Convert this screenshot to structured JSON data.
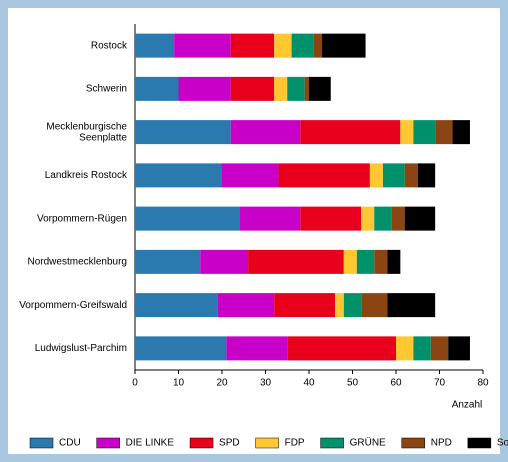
{
  "chart_data": {
    "type": "stacked-barh",
    "categories": [
      "Rostock",
      "Schwerin",
      "Mecklenburgische Seenplatte",
      "Landkreis Rostock",
      "Vorpommern-Rügen",
      "Nordwestmecklenburg",
      "Vorpommern-Greifswald",
      "Ludwigslust-Parchim"
    ],
    "series": [
      {
        "name": "CDU",
        "color": "#2a7ab0",
        "values": [
          9,
          10,
          22,
          20,
          24,
          15,
          19,
          21
        ]
      },
      {
        "name": "DIE LINKE",
        "color": "#c800c8",
        "values": [
          13,
          12,
          16,
          13,
          14,
          11,
          13,
          14
        ]
      },
      {
        "name": "SPD",
        "color": "#e8001c",
        "values": [
          10,
          10,
          23,
          21,
          14,
          22,
          14,
          25
        ]
      },
      {
        "name": "FDP",
        "color": "#ffc832",
        "values": [
          4,
          3,
          3,
          3,
          3,
          3,
          2,
          4
        ]
      },
      {
        "name": "GRÜNE",
        "color": "#00916b",
        "values": [
          5,
          4,
          5,
          5,
          4,
          4,
          4,
          4
        ]
      },
      {
        "name": "NPD",
        "color": "#8b4513",
        "values": [
          2,
          1,
          4,
          3,
          3,
          3,
          6,
          4
        ]
      },
      {
        "name": "Sonstige",
        "color": "#000000",
        "values": [
          10,
          5,
          4,
          4,
          7,
          3,
          11,
          5
        ]
      }
    ],
    "x_label": "Anzahl",
    "xlim": [
      0,
      80
    ],
    "xticks": [
      0,
      10,
      20,
      30,
      40,
      50,
      60,
      70,
      80
    ],
    "grid": false,
    "legend": "bottom"
  }
}
